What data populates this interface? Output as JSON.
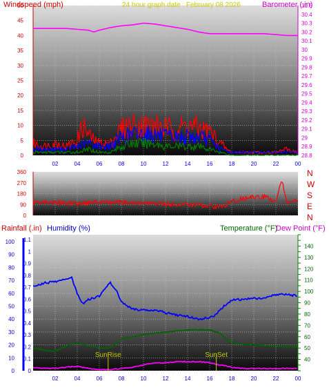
{
  "header": {
    "windspeed_label": "Windspeed (mph)",
    "graph_title": "24 hour graph date : February 08 2026",
    "barometer_label": "Barometer (.in)"
  },
  "direction_letters": [
    "N",
    "W",
    "S",
    "E",
    "N"
  ],
  "bottom_header": {
    "rainfall_label": "Rainfall (.in)",
    "humidity_label": "Humidity (%)",
    "temperature_label": "Temperature (°F)",
    "dewpoint_label": "Dew Point (°F)"
  },
  "annotations": {
    "sunrise": "SunRise",
    "sunset": "SunSet"
  },
  "colors": {
    "wind_gust": "#ff0000",
    "wind_avg": "#0000ff",
    "wind_low": "#008000",
    "barometer": "#ff00ff",
    "direction": "#ff0000",
    "humidity": "#0000ff",
    "temperature": "#006400",
    "dewpoint": "#ff00ff",
    "rain_axis": "#0000ff",
    "sun_marker": "#c8c800"
  },
  "chart_data": [
    {
      "type": "line",
      "title": "24 hour graph date : February 08 2026",
      "x_ticks": [
        "02",
        "04",
        "06",
        "08",
        "10",
        "12",
        "14",
        "16",
        "18",
        "20",
        "22",
        "00"
      ],
      "y_left": {
        "label": "Windspeed (mph)",
        "ylim": [
          0,
          50
        ],
        "ticks": [
          0,
          5,
          10,
          15,
          20,
          25,
          30,
          35,
          40,
          45,
          50
        ]
      },
      "y_right": {
        "label": "Barometer (.in)",
        "ylim": [
          28.8,
          30.5
        ],
        "ticks": [
          "28.8",
          "28.9",
          "29",
          "29.1",
          "29.2",
          "29.3",
          "29.4",
          "29.5",
          "29.6",
          "29.7",
          "29.8",
          "29.9",
          "30",
          "30.1",
          "30.2",
          "30.3",
          "30.4",
          "30.5"
        ]
      },
      "series": [
        {
          "axis": "right",
          "hours": [
            0,
            1,
            2,
            3,
            4,
            5,
            5.5,
            6,
            7,
            8,
            9,
            10,
            11,
            12,
            13,
            14,
            15,
            16,
            17,
            18,
            19,
            20,
            21,
            22,
            23,
            24
          ],
          "values": [
            30.24,
            30.24,
            30.24,
            30.24,
            30.23,
            30.22,
            30.2,
            30.22,
            30.25,
            30.27,
            30.28,
            30.3,
            30.29,
            30.27,
            30.25,
            30.23,
            30.2,
            30.18,
            30.18,
            30.18,
            30.18,
            30.18,
            30.18,
            30.17,
            30.16,
            30.16
          ]
        },
        {
          "axis": "left",
          "hours": [
            0,
            1,
            2,
            3,
            4,
            4.5,
            5,
            5.5,
            6,
            7,
            8,
            9,
            10,
            11,
            12,
            13,
            14,
            15,
            16,
            17,
            17.5,
            18,
            19,
            20,
            21,
            22,
            23,
            24
          ],
          "values": [
            4,
            3,
            4,
            3,
            5,
            10,
            7,
            5,
            4,
            4,
            9,
            10,
            10,
            10,
            9,
            9,
            10,
            9,
            8,
            4,
            2,
            1,
            1,
            1,
            1,
            1,
            2,
            1
          ]
        },
        {
          "axis": "left",
          "hours": [
            0,
            1,
            2,
            3,
            4,
            5,
            6,
            7,
            8,
            9,
            10,
            11,
            12,
            13,
            14,
            15,
            16,
            17,
            18,
            19,
            20,
            21,
            22,
            23,
            24
          ],
          "values": [
            2,
            2,
            2,
            2,
            3,
            4,
            3,
            3,
            6,
            7,
            7,
            7,
            6,
            6,
            6,
            6,
            5,
            2,
            1,
            1,
            1,
            1,
            1,
            1,
            1
          ]
        },
        {
          "axis": "left",
          "hours": [
            0,
            1,
            2,
            3,
            4,
            5,
            6,
            7,
            8,
            9,
            10,
            11,
            12,
            13,
            14,
            15,
            16,
            17,
            18,
            19,
            20,
            21,
            22,
            23,
            24
          ],
          "values": [
            1,
            1,
            1,
            1,
            1,
            2,
            1,
            1,
            3,
            4,
            4,
            4,
            3,
            3,
            3,
            3,
            2,
            1,
            0,
            0,
            0,
            0,
            0,
            0,
            0
          ]
        }
      ]
    },
    {
      "type": "line",
      "title": "",
      "y": {
        "ylim": [
          0,
          360
        ],
        "ticks": [
          0,
          90,
          180,
          270,
          360
        ]
      },
      "series": [
        {
          "hours": [
            0,
            2,
            4,
            6,
            8,
            10,
            12,
            14,
            16,
            17,
            18,
            19,
            20,
            21,
            22,
            22.5,
            23,
            24
          ],
          "values": [
            110,
            108,
            100,
            110,
            105,
            100,
            95,
            90,
            80,
            70,
            110,
            140,
            150,
            150,
            120,
            300,
            110,
            120
          ]
        }
      ]
    },
    {
      "type": "line",
      "title": "",
      "y_left": {
        "label": "Humidity (%)",
        "ylim": [
          0,
          100
        ],
        "ticks": [
          0,
          10,
          20,
          30,
          40,
          50,
          60,
          70,
          80,
          90,
          100
        ]
      },
      "y_rain": {
        "label": "Rainfall (.in)",
        "ylim": [
          0,
          1.1
        ],
        "ticks": [
          "0",
          "0.1",
          "0.2",
          "0.3",
          "0.4",
          "0.5",
          "0.6",
          "0.7",
          "0.8",
          "0.9",
          "1",
          "1.1"
        ]
      },
      "y_right": {
        "label": "Temperature (°F)",
        "ylim": [
          30,
          150
        ],
        "ticks": [
          40,
          50,
          60,
          70,
          80,
          90,
          100,
          110,
          120,
          130,
          140
        ]
      },
      "series": [
        {
          "name": "Humidity",
          "axis": "left",
          "hours": [
            0,
            1,
            2,
            3,
            3.5,
            4,
            4.5,
            5,
            6,
            6.5,
            7,
            7.5,
            8,
            9,
            10,
            11,
            12,
            13,
            14,
            15,
            16,
            16.5,
            17,
            18,
            19,
            20,
            21,
            22,
            23,
            24
          ],
          "values": [
            65,
            68,
            69,
            71,
            72,
            60,
            52,
            55,
            58,
            64,
            68,
            63,
            53,
            48,
            47,
            47,
            45,
            43,
            42,
            40,
            41,
            43,
            48,
            55,
            55,
            56,
            56,
            59,
            59,
            58
          ]
        },
        {
          "name": "Temperature",
          "axis": "right",
          "hours": [
            0,
            1,
            2,
            3,
            4,
            5,
            6,
            7,
            8,
            9,
            10,
            11,
            12,
            13,
            14,
            15,
            16,
            17,
            17.5,
            18,
            19,
            20,
            21,
            22,
            23,
            24
          ],
          "values": [
            50,
            48,
            47,
            52,
            55,
            52,
            50,
            50,
            58,
            60,
            62,
            63,
            64,
            65,
            66,
            66,
            66,
            63,
            58,
            55,
            53,
            53,
            52,
            52,
            51,
            51
          ]
        },
        {
          "name": "Dew Point",
          "axis": "right",
          "hours": [
            0,
            1,
            2,
            3,
            4,
            5,
            6,
            7,
            8,
            9,
            10,
            11,
            12,
            13,
            14,
            15,
            16,
            17,
            18,
            19,
            20,
            21,
            22,
            23,
            24
          ],
          "values": [
            33,
            32,
            32,
            33,
            34,
            32,
            31,
            31,
            32,
            33,
            35,
            37,
            37,
            38,
            38,
            38,
            37,
            35,
            33,
            32,
            32,
            32,
            32,
            32,
            32
          ]
        }
      ],
      "sunrise_hour": 6.8,
      "sunset_hour": 16.6
    }
  ]
}
